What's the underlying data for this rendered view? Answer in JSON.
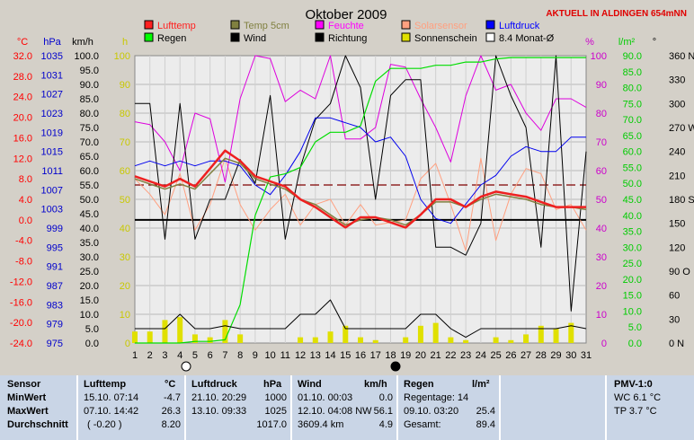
{
  "chart_data": {
    "type": "line",
    "title": "Oktober 2009",
    "banner": "AKTUELL IN ALDINGEN 654mNN",
    "x": [
      1,
      2,
      3,
      4,
      5,
      6,
      7,
      8,
      9,
      10,
      11,
      12,
      13,
      14,
      15,
      16,
      17,
      18,
      19,
      20,
      21,
      22,
      23,
      24,
      25,
      26,
      27,
      28,
      29,
      30,
      31
    ],
    "axes": {
      "temp": {
        "unit": "°C",
        "min": -24,
        "max": 32,
        "ticks": [
          "32.0",
          "28.0",
          "24.0",
          "20.0",
          "16.0",
          "12.0",
          "8.0",
          "4.0",
          "0.0",
          "-4.0",
          "-8.0",
          "-12.0",
          "-16.0",
          "-20.0",
          "-24.0"
        ],
        "color": "#ff0000"
      },
      "pressure": {
        "unit": "hPa",
        "min": 975,
        "max": 1035,
        "ticks": [
          "1035",
          "1031",
          "1027",
          "1023",
          "1019",
          "1015",
          "1011",
          "1007",
          "1003",
          "999",
          "995",
          "991",
          "987",
          "983",
          "979",
          "975"
        ],
        "color": "#0000cc"
      },
      "wind": {
        "unit": "km/h",
        "min": 0,
        "max": 100,
        "ticks": [
          "100.0",
          "95.0",
          "90.0",
          "85.0",
          "80.0",
          "75.0",
          "70.0",
          "65.0",
          "60.0",
          "55.0",
          "50.0",
          "45.0",
          "40.0",
          "35.0",
          "30.0",
          "25.0",
          "20.0",
          "15.0",
          "10.0",
          "5.0",
          "0.0"
        ],
        "color": "#000000"
      },
      "sun": {
        "unit": "h",
        "ticks": [
          "100",
          "90",
          "80",
          "70",
          "60",
          "50",
          "40",
          "30",
          "20",
          "10",
          "0"
        ],
        "color": "#c8c800"
      },
      "humidity": {
        "unit": "%",
        "ticks": [
          "100",
          "90",
          "80",
          "70",
          "60",
          "50",
          "40",
          "30",
          "20",
          "10",
          "0"
        ],
        "color": "#cc00cc"
      },
      "rain": {
        "unit": "l/m²",
        "min": 0,
        "max": 90,
        "ticks": [
          "90.0",
          "85.0",
          "80.0",
          "75.0",
          "70.0",
          "65.0",
          "60.0",
          "55.0",
          "50.0",
          "45.0",
          "40.0",
          "35.0",
          "30.0",
          "25.0",
          "20.0",
          "15.0",
          "10.0",
          "5.0",
          "0.0"
        ],
        "color": "#00cc00"
      },
      "direction": {
        "unit": "°",
        "ticks": [
          "360 N",
          "330",
          "300",
          "270 W",
          "240",
          "210",
          "180 S",
          "150",
          "120",
          "90 O",
          "60",
          "30",
          "0 N"
        ],
        "color": "#000000"
      }
    },
    "legend": [
      {
        "name": "Lufttemp",
        "color": "#ff2020"
      },
      {
        "name": "Temp 5cm",
        "color": "#808040"
      },
      {
        "name": "Feuchte",
        "color": "#ff00ff"
      },
      {
        "name": "Solarsensor",
        "color": "#ffa080"
      },
      {
        "name": "Luftdruck",
        "color": "#0000ff"
      },
      {
        "name": "Regen",
        "color": "#00ff00"
      },
      {
        "name": "Wind",
        "color": "#000000"
      },
      {
        "name": "Richtung",
        "color": "#000000"
      },
      {
        "name": "Sonnenschein",
        "color": "#e0e000"
      },
      {
        "name": "8.4 Monat-Ø",
        "color": "#ffffff"
      }
    ],
    "series": {
      "lufttemp": [
        8.5,
        7.5,
        6.5,
        8.0,
        6.5,
        10.0,
        13.5,
        11.5,
        8.5,
        7.5,
        6.5,
        4.0,
        2.5,
        0.5,
        -1.5,
        0.5,
        0.5,
        -0.5,
        -1.5,
        1.0,
        4.0,
        4.0,
        2.5,
        4.5,
        5.5,
        5.0,
        4.5,
        3.5,
        2.5,
        2.5,
        2.5
      ],
      "temp5cm": [
        8.0,
        7.0,
        6.0,
        7.0,
        6.0,
        9.0,
        12.0,
        11.0,
        8.0,
        7.0,
        6.0,
        4.0,
        3.0,
        1.0,
        -1.0,
        0.0,
        0.5,
        0.0,
        -1.0,
        1.0,
        3.5,
        3.5,
        2.5,
        4.0,
        5.0,
        4.5,
        4.0,
        3.0,
        2.5,
        2.5,
        2.0
      ],
      "solar": [
        8.0,
        5.0,
        1.0,
        9.0,
        -2.0,
        3.0,
        12.0,
        3.0,
        -2.0,
        2.0,
        5.0,
        -1.0,
        3.0,
        4.0,
        -1.0,
        3.0,
        -1.0,
        -0.5,
        0.0,
        8.0,
        11.0,
        3.0,
        -6.0,
        12.0,
        -4.0,
        5.0,
        10.0,
        9.0,
        2.0,
        3.0,
        -2.0
      ],
      "feuchte": [
        77,
        76,
        70,
        60,
        80,
        78,
        56,
        85,
        100,
        99,
        84,
        88,
        85,
        100,
        71,
        71,
        75,
        97,
        96,
        85,
        75,
        63,
        86,
        100,
        88,
        90,
        80,
        74,
        85,
        85,
        82
      ],
      "luftdruck": [
        1012,
        1013,
        1012,
        1013,
        1012,
        1013,
        1013,
        1012,
        1008,
        1006,
        1010,
        1015,
        1022,
        1022,
        1021,
        1020,
        1017,
        1018,
        1014,
        1005,
        1001,
        1000,
        1004,
        1008,
        1010,
        1014,
        1016,
        1015,
        1015,
        1018,
        1018
      ],
      "regen": [
        0.0,
        0.0,
        0.0,
        0.0,
        0.5,
        0.5,
        1.0,
        12.0,
        40.0,
        52.0,
        53.0,
        55.0,
        63.0,
        66.0,
        66.0,
        68.0,
        82.0,
        86.0,
        86.0,
        86.0,
        87.0,
        87.0,
        88.0,
        88.0,
        89.0,
        89.4,
        89.4,
        89.4,
        89.4,
        89.4,
        89.4
      ],
      "wind_max": [
        5.0,
        5.0,
        5.0,
        10.0,
        5.0,
        5.0,
        6.0,
        5.0,
        5.0,
        5.0,
        5.0,
        10.0,
        10.0,
        15.0,
        5.0,
        5.0,
        5.0,
        5.0,
        5.0,
        10.0,
        10.0,
        5.0,
        2.0,
        5.0,
        5.0,
        5.0,
        5.0,
        5.0,
        5.0,
        6.0,
        5.0
      ],
      "richtung": [
        300,
        300,
        130,
        300,
        130,
        180,
        180,
        230,
        200,
        310,
        130,
        220,
        280,
        300,
        360,
        320,
        180,
        310,
        330,
        330,
        120,
        120,
        110,
        150,
        360,
        310,
        270,
        120,
        360,
        40,
        240
      ],
      "sonnenschein": [
        4,
        4,
        8,
        9,
        3,
        2,
        8,
        3,
        0,
        0,
        0,
        2,
        2,
        4,
        6,
        2,
        1,
        0,
        2,
        6,
        7,
        2,
        1,
        0,
        2,
        1,
        3,
        6,
        5,
        7,
        0
      ],
      "monat_avg": 55
    }
  },
  "day_labels": [
    "1",
    "2",
    "3",
    "4",
    "5",
    "6",
    "7",
    "8",
    "9",
    "10",
    "11",
    "12",
    "13",
    "14",
    "15",
    "16",
    "17",
    "18",
    "19",
    "20",
    "21",
    "22",
    "23",
    "24",
    "25",
    "26",
    "27",
    "28",
    "29",
    "30",
    "31"
  ],
  "stats": {
    "sensor": {
      "title": "Sensor",
      "rows": [
        "MinWert",
        "MaxWert",
        "Durchschnitt"
      ]
    },
    "lufttemp": {
      "title": "Lufttemp",
      "unit": "°C",
      "rows": [
        [
          "15.10.  07:14",
          "-4.7"
        ],
        [
          "07.10.  14:42",
          "26.3"
        ],
        [
          "( -0.20 )",
          "8.20"
        ]
      ]
    },
    "luftdruck": {
      "title": "Luftdruck",
      "unit": "hPa",
      "rows": [
        [
          "21.10.  20:29",
          "1000"
        ],
        [
          "13.10.  09:33",
          "1025"
        ],
        [
          "",
          "1017.0"
        ]
      ]
    },
    "wind": {
      "title": "Wind",
      "unit": "km/h",
      "rows": [
        [
          "01.10.  00:03",
          "0.0"
        ],
        [
          "12.10.  04:08 NW",
          "56.1"
        ],
        [
          "3609.4 km",
          "4.9"
        ]
      ]
    },
    "regen": {
      "title": "Regen",
      "unit": "l/m²",
      "rows": [
        [
          "Regentage: 14",
          ""
        ],
        [
          "09.10.  03:20",
          "25.4"
        ],
        [
          "Gesamt:",
          "89.4"
        ]
      ]
    },
    "pmv": {
      "title": "PMV-1:0",
      "rows": [
        "WC 6.1 °C",
        "TP 3.7 °C"
      ]
    }
  }
}
